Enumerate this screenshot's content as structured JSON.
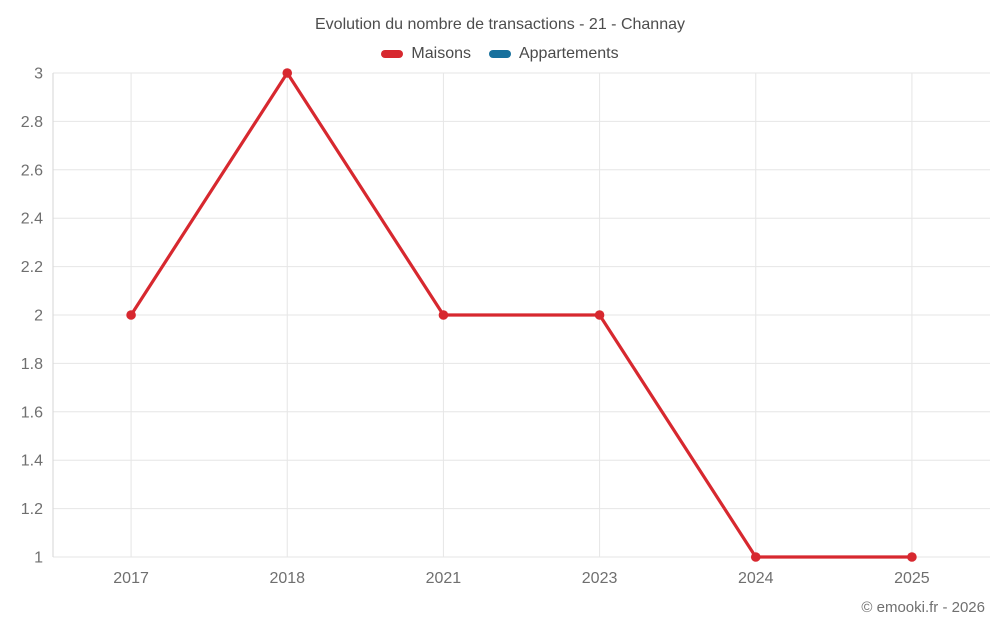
{
  "chart_data": {
    "type": "line",
    "title": "Evolution du nombre de transactions - 21 - Channay",
    "categories": [
      "2017",
      "2018",
      "2021",
      "2023",
      "2024",
      "2025"
    ],
    "series": [
      {
        "name": "Maisons",
        "color": "#d7282f",
        "values": [
          2,
          3,
          2,
          2,
          1,
          1
        ]
      },
      {
        "name": "Appartements",
        "color": "#17709d",
        "values": []
      }
    ],
    "ylim": [
      1,
      3
    ],
    "yticks": [
      1,
      1.2,
      1.4,
      1.6,
      1.8,
      2,
      2.2,
      2.4,
      2.6,
      2.8,
      3
    ],
    "grid": true,
    "legend_position": "top",
    "colors": {
      "gridline": "#e6e6e6",
      "axis_line": "#d6d6d6",
      "tick_label": "#6f6f6f"
    }
  },
  "footer": {
    "copyright": "© emooki.fr - 2026"
  }
}
